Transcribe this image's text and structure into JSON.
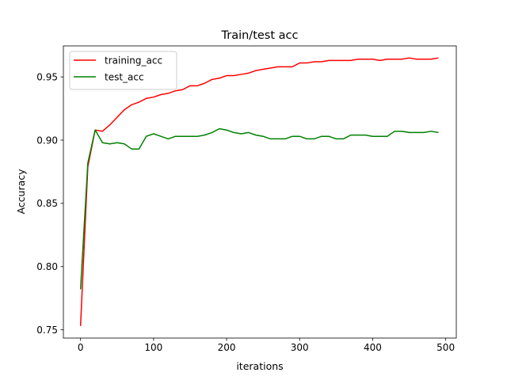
{
  "chart_data": {
    "type": "line",
    "title": "Train/test acc",
    "xlabel": "iterations",
    "ylabel": "Accuracy",
    "xlim": [
      -23.5,
      514.5
    ],
    "ylim": [
      0.7435,
      0.9745
    ],
    "xticks": [
      0,
      100,
      200,
      300,
      400,
      500
    ],
    "xtick_labels": [
      "0",
      "100",
      "200",
      "300",
      "400",
      "500"
    ],
    "yticks": [
      0.75,
      0.8,
      0.85,
      0.9,
      0.95
    ],
    "ytick_labels": [
      "0.75",
      "0.80",
      "0.85",
      "0.90",
      "0.95"
    ],
    "grid": false,
    "legend_position": "top-left",
    "x": [
      0,
      10,
      20,
      30,
      40,
      50,
      60,
      70,
      80,
      90,
      100,
      110,
      120,
      130,
      140,
      150,
      160,
      170,
      180,
      190,
      200,
      210,
      220,
      230,
      240,
      250,
      260,
      270,
      280,
      290,
      300,
      310,
      320,
      330,
      340,
      350,
      360,
      370,
      380,
      390,
      400,
      410,
      420,
      430,
      440,
      450,
      460,
      470,
      480,
      490
    ],
    "series": [
      {
        "name": "training_acc",
        "color": "#ff0000",
        "values": [
          0.753,
          0.879,
          0.908,
          0.907,
          0.912,
          0.918,
          0.924,
          0.928,
          0.93,
          0.933,
          0.934,
          0.936,
          0.937,
          0.939,
          0.94,
          0.943,
          0.943,
          0.945,
          0.948,
          0.949,
          0.951,
          0.951,
          0.952,
          0.953,
          0.955,
          0.956,
          0.957,
          0.958,
          0.958,
          0.958,
          0.961,
          0.961,
          0.962,
          0.962,
          0.963,
          0.963,
          0.963,
          0.963,
          0.964,
          0.964,
          0.964,
          0.963,
          0.964,
          0.964,
          0.964,
          0.965,
          0.964,
          0.964,
          0.964,
          0.965
        ]
      },
      {
        "name": "test_acc",
        "color": "#008000",
        "values": [
          0.782,
          0.882,
          0.908,
          0.898,
          0.897,
          0.898,
          0.897,
          0.893,
          0.893,
          0.903,
          0.905,
          0.903,
          0.901,
          0.903,
          0.903,
          0.903,
          0.903,
          0.904,
          0.906,
          0.909,
          0.908,
          0.906,
          0.905,
          0.906,
          0.904,
          0.903,
          0.901,
          0.901,
          0.901,
          0.903,
          0.903,
          0.901,
          0.901,
          0.903,
          0.903,
          0.901,
          0.901,
          0.904,
          0.904,
          0.904,
          0.903,
          0.903,
          0.903,
          0.907,
          0.907,
          0.906,
          0.906,
          0.906,
          0.907,
          0.906
        ]
      }
    ]
  }
}
